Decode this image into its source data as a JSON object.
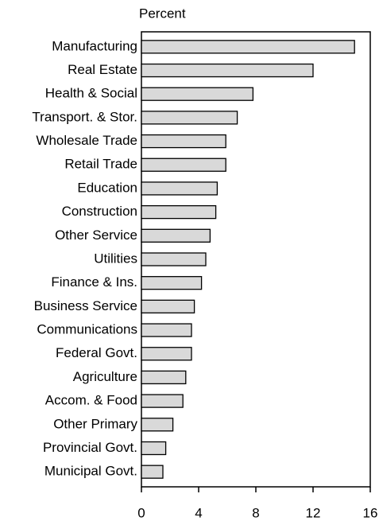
{
  "chart_data": {
    "type": "hbar",
    "xlabel": "Percent",
    "categories": [
      "Manufacturing",
      "Real Estate",
      "Health & Social",
      "Transport. & Stor.",
      "Wholesale Trade",
      "Retail Trade",
      "Education",
      "Construction",
      "Other Service",
      "Utilities",
      "Finance & Ins.",
      "Business Service",
      "Communications",
      "Federal Govt.",
      "Agriculture",
      "Accom. & Food",
      "Other Primary",
      "Provincial Govt.",
      "Municipal Govt."
    ],
    "values": [
      14.9,
      12.0,
      7.8,
      6.7,
      5.9,
      5.9,
      5.3,
      5.2,
      4.8,
      4.5,
      4.2,
      3.7,
      3.5,
      3.5,
      3.1,
      2.9,
      2.2,
      1.7,
      1.5
    ],
    "color": "#d9d9d9",
    "xlim": [
      0,
      16
    ],
    "xticks": [
      0,
      4,
      8,
      12,
      16
    ]
  }
}
